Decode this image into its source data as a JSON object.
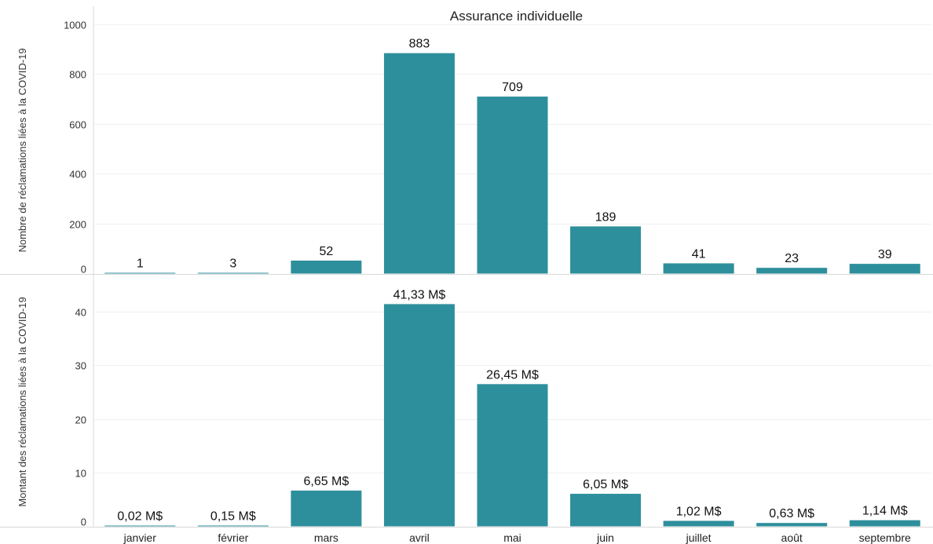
{
  "chart_data": {
    "type": "bar",
    "title": "Assurance individuelle",
    "categories": [
      "janvier",
      "février",
      "mars",
      "avril",
      "mai",
      "juin",
      "juillet",
      "août",
      "septembre"
    ],
    "color": "#2e8f9c",
    "panels": [
      {
        "ylabel": "Nombre de réclamations liées à la COVID-19",
        "ylim": [
          0,
          1000
        ],
        "yticks": [
          0,
          200,
          400,
          600,
          800,
          1000
        ],
        "values": [
          1,
          3,
          52,
          883,
          709,
          189,
          41,
          23,
          39
        ],
        "labels": [
          "1",
          "3",
          "52",
          "883",
          "709",
          "189",
          "41",
          "23",
          "39"
        ]
      },
      {
        "ylabel": "Montant des réclamations liées à la COVID-19",
        "ylim": [
          0,
          44
        ],
        "yticks": [
          0,
          10,
          20,
          30,
          40
        ],
        "values": [
          0.02,
          0.15,
          6.65,
          41.33,
          26.45,
          6.05,
          1.02,
          0.63,
          1.14
        ],
        "labels": [
          "0,02 M$",
          "0,15 M$",
          "6,65 M$",
          "41,33 M$",
          "26,45 M$",
          "6,05 M$",
          "1,02 M$",
          "0,63 M$",
          "1,14 M$"
        ]
      }
    ]
  }
}
